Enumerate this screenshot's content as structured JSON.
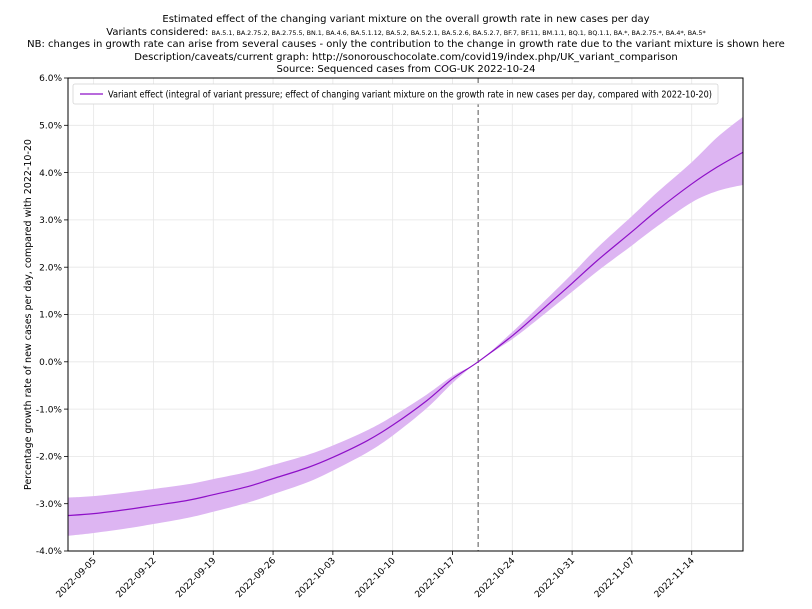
{
  "chart_data": {
    "type": "line",
    "title": "Estimated effect of the changing variant mixture on the overall growth rate in new cases per day",
    "subtitle_lines": {
      "variants_label": "Variants considered: ",
      "variants_list": "BA.5.1, BA.2.75.2, BA.2.75.5, BN.1, BA.4.6, BA.5.1.12, BA.5.2, BA.5.2.1, BA.5.2.6, BA.5.2.7, BF.7, BF.11, BM.1.1, BQ.1, BQ.1.1, BA.*, BA.2.75.*, BA.4*, BA.5*",
      "nb": "NB: changes in growth rate can arise from several causes - only the contribution to the change in growth rate due to the variant mixture is shown here",
      "description": "Description/caveats/current graph: http://sonorouschocolate.com/covid19/index.php/UK_variant_comparison",
      "source": "Source: Sequenced cases from COG-UK 2022-10-24"
    },
    "ylabel": "Percentage growth rate of new cases per day, compared with 2022-10-20",
    "xlabel": "",
    "ylim": [
      -4.0,
      6.0
    ],
    "y_ticks": [
      "-4.0%",
      "-3.0%",
      "-2.0%",
      "-1.0%",
      "0.0%",
      "1.0%",
      "2.0%",
      "3.0%",
      "4.0%",
      "5.0%",
      "6.0%"
    ],
    "x_ticks": [
      "2022-09-05",
      "2022-09-12",
      "2022-09-19",
      "2022-09-26",
      "2022-10-03",
      "2022-10-10",
      "2022-10-17",
      "2022-10-24",
      "2022-10-31",
      "2022-11-07",
      "2022-11-14"
    ],
    "xlim": [
      "2022-09-02",
      "2022-11-20"
    ],
    "reference_line": "2022-10-20",
    "grid": true,
    "legend_position": "top-left",
    "series": [
      {
        "name": "Variant effect (integral of variant pressure; effect of changing variant mixture on the growth rate in new cases per day, compared with 2022-10-20)",
        "color": "#8e10c8",
        "band_color": "#ddb5f2",
        "points": [
          {
            "x": "2022-09-02",
            "y": -3.25,
            "lo": -3.68,
            "hi": -2.87
          },
          {
            "x": "2022-09-05",
            "y": -3.21,
            "lo": -3.62,
            "hi": -2.84
          },
          {
            "x": "2022-09-09",
            "y": -3.12,
            "lo": -3.52,
            "hi": -2.76
          },
          {
            "x": "2022-09-12",
            "y": -3.04,
            "lo": -3.43,
            "hi": -2.69
          },
          {
            "x": "2022-09-16",
            "y": -2.93,
            "lo": -3.3,
            "hi": -2.59
          },
          {
            "x": "2022-09-19",
            "y": -2.81,
            "lo": -3.17,
            "hi": -2.48
          },
          {
            "x": "2022-09-23",
            "y": -2.64,
            "lo": -2.98,
            "hi": -2.33
          },
          {
            "x": "2022-09-26",
            "y": -2.47,
            "lo": -2.8,
            "hi": -2.18
          },
          {
            "x": "2022-09-30",
            "y": -2.24,
            "lo": -2.55,
            "hi": -1.97
          },
          {
            "x": "2022-10-03",
            "y": -2.02,
            "lo": -2.3,
            "hi": -1.77
          },
          {
            "x": "2022-10-07",
            "y": -1.67,
            "lo": -1.92,
            "hi": -1.45
          },
          {
            "x": "2022-10-10",
            "y": -1.34,
            "lo": -1.56,
            "hi": -1.15
          },
          {
            "x": "2022-10-14",
            "y": -0.82,
            "lo": -0.98,
            "hi": -0.69
          },
          {
            "x": "2022-10-17",
            "y": -0.36,
            "lo": -0.45,
            "hi": -0.3
          },
          {
            "x": "2022-10-20",
            "y": 0.0,
            "lo": 0.0,
            "hi": 0.0
          },
          {
            "x": "2022-10-24",
            "y": 0.55,
            "lo": 0.48,
            "hi": 0.63
          },
          {
            "x": "2022-10-27",
            "y": 1.02,
            "lo": 0.9,
            "hi": 1.15
          },
          {
            "x": "2022-10-31",
            "y": 1.66,
            "lo": 1.48,
            "hi": 1.86
          },
          {
            "x": "2022-11-03",
            "y": 2.15,
            "lo": 1.92,
            "hi": 2.42
          },
          {
            "x": "2022-11-07",
            "y": 2.75,
            "lo": 2.46,
            "hi": 3.08
          },
          {
            "x": "2022-11-10",
            "y": 3.21,
            "lo": 2.87,
            "hi": 3.59
          },
          {
            "x": "2022-11-14",
            "y": 3.76,
            "lo": 3.37,
            "hi": 4.22
          },
          {
            "x": "2022-11-17",
            "y": 4.12,
            "lo": 3.61,
            "hi": 4.75
          },
          {
            "x": "2022-11-20",
            "y": 4.43,
            "lo": 3.74,
            "hi": 5.18
          }
        ]
      }
    ]
  }
}
